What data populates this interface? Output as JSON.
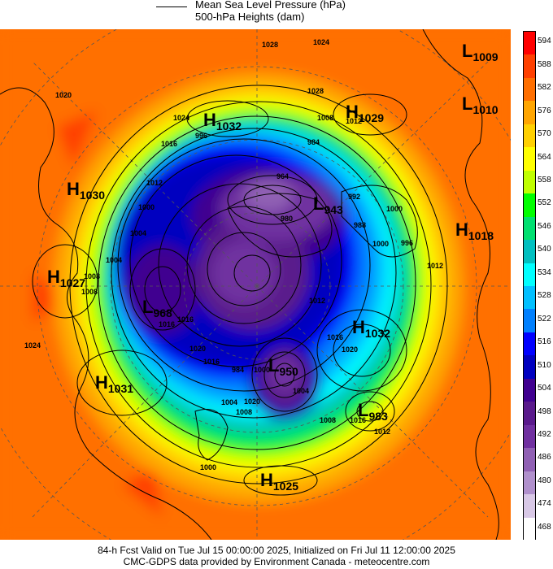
{
  "header": {
    "legend_line1": "Mean Sea Level Pressure (hPa)",
    "legend_line2": "500-hPa Heights (dam)"
  },
  "footer": {
    "line1": "84-h Fcst Valid on Tue Jul 15 00:00:00 2025, Initialized on Fri Jul 11 12:00:00 2025",
    "line2": "CMC-GDPS data provided by Environment Canada - meteocentre.com"
  },
  "colorbar": {
    "labels": [
      "594",
      "588",
      "582",
      "576",
      "570",
      "564",
      "558",
      "552",
      "546",
      "540",
      "534",
      "528",
      "522",
      "516",
      "510",
      "504",
      "498",
      "492",
      "486",
      "480",
      "474",
      "468"
    ],
    "colors": [
      "#ff0000",
      "#ff4000",
      "#ff6f00",
      "#ffa500",
      "#ffd000",
      "#ffff00",
      "#c0ff00",
      "#00ff00",
      "#00e070",
      "#00c0c0",
      "#00ffff",
      "#00c0ff",
      "#0080ff",
      "#0000ff",
      "#0000c0",
      "#400090",
      "#5a1a8c",
      "#7030a0",
      "#9060b4",
      "#b090cc",
      "#d8c8e6",
      "#ffffff"
    ]
  },
  "pressure_centers": [
    {
      "type": "L",
      "value": "1009"
    },
    {
      "type": "L",
      "value": "1010"
    },
    {
      "type": "H",
      "value": "1032"
    },
    {
      "type": "H",
      "value": "1029"
    },
    {
      "type": "H",
      "value": "1030"
    },
    {
      "type": "L",
      "value": "943"
    },
    {
      "type": "H",
      "value": "1018"
    },
    {
      "type": "H",
      "value": "1027"
    },
    {
      "type": "L",
      "value": "968"
    },
    {
      "type": "H",
      "value": "1032"
    },
    {
      "type": "L",
      "value": "950"
    },
    {
      "type": "H",
      "value": "1031"
    },
    {
      "type": "L",
      "value": "983"
    },
    {
      "type": "H",
      "value": "1025"
    }
  ],
  "isobar_labels": [
    "1028",
    "1024",
    "1020",
    "1028",
    "1008",
    "1012",
    "1024",
    "996",
    "984",
    "964",
    "1016",
    "1012",
    "1000",
    "1004",
    "1000",
    "996",
    "988",
    "992",
    "980",
    "1000",
    "1012",
    "1008",
    "1004",
    "1008",
    "1016",
    "1016",
    "1020",
    "1016",
    "1012",
    "1016",
    "1020",
    "1024",
    "984",
    "1000",
    "1004",
    "1008",
    "1016",
    "1012",
    "1020",
    "1008",
    "1004",
    "1000"
  ]
}
